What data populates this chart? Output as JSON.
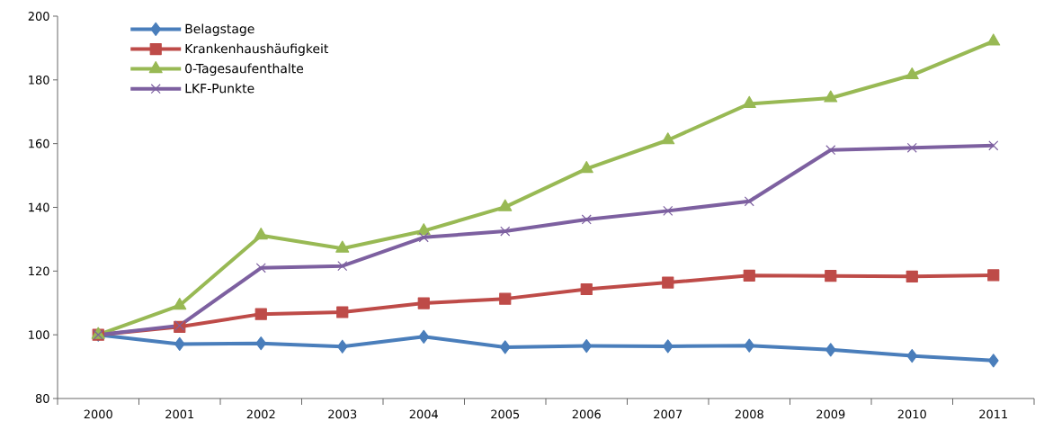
{
  "chart_data": {
    "type": "line",
    "categories": [
      "2000",
      "2001",
      "2002",
      "2003",
      "2004",
      "2005",
      "2006",
      "2007",
      "2008",
      "2009",
      "2010",
      "2011"
    ],
    "series": [
      {
        "name": "Belagstage",
        "color": "#4a7ebb",
        "marker": "diamond",
        "values": [
          100,
          97.1,
          97.3,
          96.3,
          99.4,
          96.1,
          96.5,
          96.4,
          96.6,
          95.3,
          93.4,
          91.9
        ]
      },
      {
        "name": "Krankenhaushäufigkeit",
        "color": "#be4b48",
        "marker": "square",
        "values": [
          100,
          102.5,
          106.5,
          107.1,
          109.9,
          111.3,
          114.3,
          116.4,
          118.6,
          118.5,
          118.3,
          118.7
        ]
      },
      {
        "name": "0-Tagesaufenthalte",
        "color": "#98b954",
        "marker": "triangle",
        "values": [
          100,
          109.2,
          131.2,
          127.1,
          132.6,
          140.1,
          152.1,
          161.1,
          172.5,
          174.3,
          181.5,
          192.1
        ]
      },
      {
        "name": "LKF-Punkte",
        "color": "#7d60a0",
        "marker": "cross",
        "values": [
          100,
          102.9,
          121.0,
          121.6,
          130.6,
          132.5,
          136.2,
          138.9,
          141.9,
          158.0,
          158.7,
          159.4
        ]
      }
    ],
    "ylim": [
      80,
      200
    ],
    "yticks": [
      80,
      100,
      120,
      140,
      160,
      180,
      200
    ],
    "grid": false,
    "legend": "top left",
    "line_style": "solid"
  }
}
